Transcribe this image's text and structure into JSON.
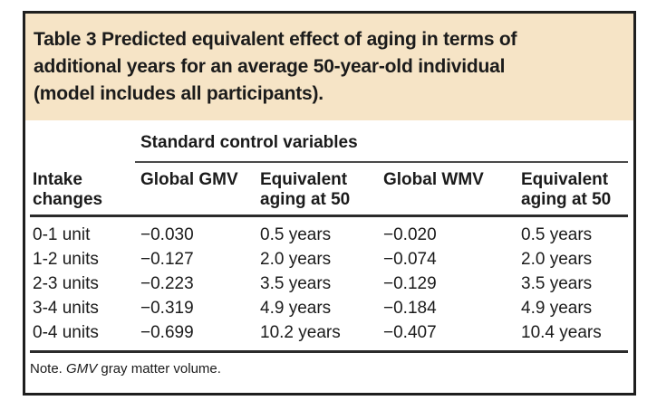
{
  "caption": {
    "lines": [
      "Table 3 Predicted equivalent effect of aging in terms of",
      "additional years for an average 50-year-old individual",
      "(model includes all participants)."
    ]
  },
  "table": {
    "spanner": "Standard control variables",
    "columns": [
      "Intake\nchanges",
      "Global GMV",
      "Equivalent\naging at 50",
      "Global WMV",
      "Equivalent\naging at 50"
    ],
    "rows": [
      [
        "0-1 unit",
        "−0.030",
        "0.5 years",
        "−0.020",
        "0.5 years"
      ],
      [
        "1-2 units",
        "−0.127",
        "2.0 years",
        "−0.074",
        "2.0 years"
      ],
      [
        "2-3 units",
        "−0.223",
        "3.5 years",
        "−0.129",
        "3.5 years"
      ],
      [
        "3-4 units",
        "−0.319",
        "4.9 years",
        "−0.184",
        "4.9 years"
      ],
      [
        "0-4 units",
        "−0.699",
        "10.2 years",
        "−0.407",
        "10.4 years"
      ]
    ]
  },
  "note": {
    "prefix": "Note. ",
    "italic": "GMV",
    "suffix": " gray matter volume."
  },
  "colors": {
    "caption_background": "#f6e4c6",
    "border": "#1f1f1f",
    "text": "#1b1b1b"
  }
}
